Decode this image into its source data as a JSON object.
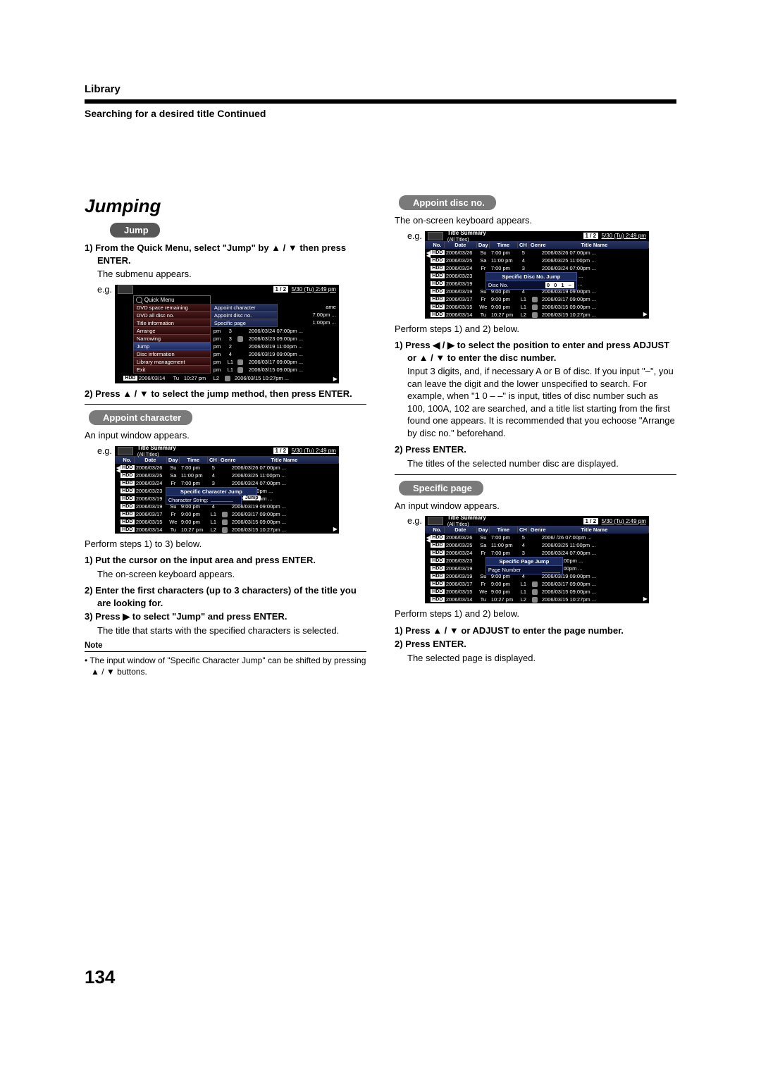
{
  "header": {
    "category": "Library",
    "subtitle": "Searching for a desired title Continued"
  },
  "heading": "Jumping",
  "pill_jump": "Jump",
  "pill_app_char": "Appoint character",
  "pill_app_disc": "Appoint disc no.",
  "pill_spec_page": "Specific page",
  "left": {
    "s1": "1) From the Quick Menu, select \"Jump\" by ▲ / ▼ then press ENTER.",
    "s1b": "The submenu appears.",
    "eg": "e.g.",
    "s2": "2) Press ▲ / ▼ to select the jump method, then press ENTER.",
    "ac_intro": "An input window appears.",
    "perform13": "Perform steps 1) to 3) below.",
    "ac1": "1) Put the cursor on the input area and press ENTER.",
    "ac1b": "The on-screen keyboard appears.",
    "ac2": "2) Enter the first characters (up to 3 characters) of the title you are looking for.",
    "ac3": "3) Press ▶ to select \"Jump\" and press ENTER.",
    "ac3b": "The title that starts with the specified characters is selected.",
    "note_label": "Note",
    "note": "• The input window of \"Specific Character Jump\" can be shifted by pressing ▲ / ▼ buttons."
  },
  "right": {
    "adn_intro": "The on-screen keyboard appears.",
    "perform12": "Perform steps 1) and 2) below.",
    "adn1": "1) Press ◀ / ▶ to select the position to enter and press ADJUST or ▲ / ▼ to enter the disc number.",
    "adn1b": "Input 3 digits, and, if necessary A or B of disc. If you input \"–\", you can leave the digit and the lower unspecified to search. For example, when \"1 0 – –\" is input, titles of disc number such as 100, 100A, 102 are searched, and a title list starting from the first found one appears. It is recommended that you echoose \"Arrange by disc no.\" beforehand.",
    "adn2": "2) Press ENTER.",
    "adn2b": "The titles of the selected number disc are displayed.",
    "sp_intro": "An input window appears.",
    "sp1": "1) Press ▲ / ▼ or ADJUST to enter the page number.",
    "sp2": "2) Press ENTER.",
    "sp2b": "The selected page is displayed."
  },
  "page_num": "134",
  "table": {
    "top_title": "Title Summary",
    "top_sub": "(All Titles)",
    "pager": "1 / 2",
    "datetime": "5/30 (Tu)   2:49 pm",
    "hdr": {
      "no": "No.",
      "date": "Date",
      "day": "Day",
      "time": "Time",
      "ch": "CH",
      "genre": "Genre",
      "title": "Title Name"
    },
    "rows": [
      {
        "hdd": "HDD",
        "date": "2006/03/26",
        "day": "Su",
        "time": "7:00 pm",
        "ch": "5",
        "title": "2006/03/26  07:00pm ..."
      },
      {
        "hdd": "HDD",
        "date": "2006/03/25",
        "day": "Sa",
        "time": "11:00 pm",
        "ch": "4",
        "title": "2006/03/25  11:00pm ..."
      },
      {
        "hdd": "HDD",
        "date": "2006/03/24",
        "day": "Fr",
        "time": "7:00 pm",
        "ch": "3",
        "title": "2006/03/24  07:00pm ..."
      },
      {
        "hdd": "HDD",
        "date": "2006/03/23",
        "day": "",
        "time": "",
        "ch": "",
        "title": "03/23  09:00pm ..."
      },
      {
        "hdd": "HDD",
        "date": "2006/03/19",
        "day": "",
        "time": "",
        "ch": "",
        "title": "03/19  11:00pm ..."
      },
      {
        "hdd": "HDD",
        "date": "2006/03/19",
        "day": "Su",
        "time": "9:00 pm",
        "ch": "4",
        "title": "2006/03/19  09:00pm ..."
      },
      {
        "hdd": "HDD",
        "date": "2006/03/17",
        "day": "Fr",
        "time": "9:00 pm",
        "ch": "L1",
        "title": "2006/03/17  09:00pm ..."
      },
      {
        "hdd": "HDD",
        "date": "2006/03/15",
        "day": "We",
        "time": "9:00 pm",
        "ch": "L1",
        "title": "2006/03/15  09:00pm ..."
      },
      {
        "hdd": "HDD",
        "date": "2006/03/14",
        "day": "Tu",
        "time": "10:27 pm",
        "ch": "L2",
        "title": "2006/03/15  10:27pm ..."
      }
    ],
    "ov_char_title": "Specific Character Jump",
    "ov_char_label": "Character String:",
    "ov_char_btn": "Jump",
    "ov_disc_title": "Specific Disc No. Jump",
    "ov_disc_label": "Disc No.",
    "ov_disc_val": "0 0 1 –",
    "ov_page_title": "Specific Page Jump",
    "ov_page_label": "Page Number",
    "sp_title_first": "2006/   /26  07:00pm ..."
  },
  "qm": {
    "title": "Quick Menu",
    "items": [
      "DVD space remaining",
      "DVD all disc no.",
      "Title information",
      "Arrange",
      "Narrowing",
      "Jump",
      "Disc information",
      "Library management",
      "Exit"
    ],
    "sub": [
      "Appoint character",
      "Appoint disc no.",
      "Specific page"
    ],
    "right_frag": [
      "ame",
      "7:00pm ...",
      "1:00pm ..."
    ],
    "bottom_rows": [
      {
        "t": "pm",
        "ch": "3",
        "title": "2006/03/24  07:00pm ..."
      },
      {
        "t": "pm",
        "ch": "3",
        "title": "2006/03/23  09:00pm ..."
      },
      {
        "t": "pm",
        "ch": "2",
        "title": "2006/03/19  11:00pm ..."
      },
      {
        "t": "pm",
        "ch": "4",
        "title": "2006/03/19  09:00pm ..."
      },
      {
        "t": "pm",
        "ch": "L1",
        "title": "2006/03/17  09:00pm ..."
      },
      {
        "t": "pm",
        "ch": "L1",
        "title": "2006/03/15  09:00pm ..."
      }
    ],
    "last_row": {
      "hdd": "HDD",
      "date": "2006/03/14",
      "day": "Tu",
      "time": "10:27 pm",
      "ch": "L2",
      "title": "2006/03/15  10:27pm ..."
    }
  }
}
